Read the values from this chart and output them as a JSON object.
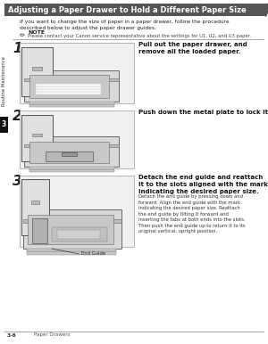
{
  "page_bg": "#ffffff",
  "title_text": "Adjusting a Paper Drawer to Hold a Different Paper Size",
  "title_bg": "#555555",
  "title_fg": "#ffffff",
  "intro_text": "If you want to change the size of paper in a paper drawer, follow the procedure\ndescribed below to adjust the paper drawer guides.",
  "note_label": "NOTE",
  "note_text": "Please contact your Canon service representative about the settings for U1, U2, and U3 paper.",
  "step1_num": "1",
  "step1_bold": "Pull out the paper drawer, and\nremove all the loaded paper.",
  "step2_num": "2",
  "step2_bold": "Push down the metal plate to lock it.",
  "step3_num": "3",
  "step3_bold": "Detach the end guide and reattach\nit to the slots aligned with the mark\nindicating the desired paper size.",
  "step3_detail": "Detach the end guide by pressing down and\nforward. Align the end guide with the mark\nindicating the desired paper size. Reattach\nthe end guide by tilting it forward and\ninserting the tabs at both ends into the slots.\nThen push the end guide up to return it to its\noriginal vertical, upright position.",
  "end_guide_label": "End Guide",
  "footer_left": "3-6",
  "footer_right": "Paper Drawers",
  "tab_label": "3",
  "tab_bg": "#111111",
  "tab_fg": "#ffffff",
  "sidebar_label": "Routine Maintenance",
  "divider_color": "#999999",
  "img_bg": "#f0f0f0",
  "img_border": "#999999"
}
